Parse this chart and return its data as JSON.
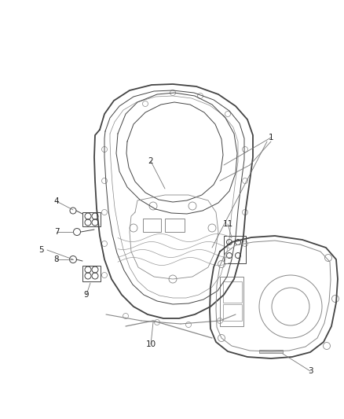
{
  "background_color": "#ffffff",
  "diagram_color": "#444444",
  "label_color": "#222222",
  "line_color": "#666666",
  "lw_main": 1.3,
  "lw_thin": 0.7,
  "lw_callout": 0.6,
  "label_fontsize": 7.5
}
